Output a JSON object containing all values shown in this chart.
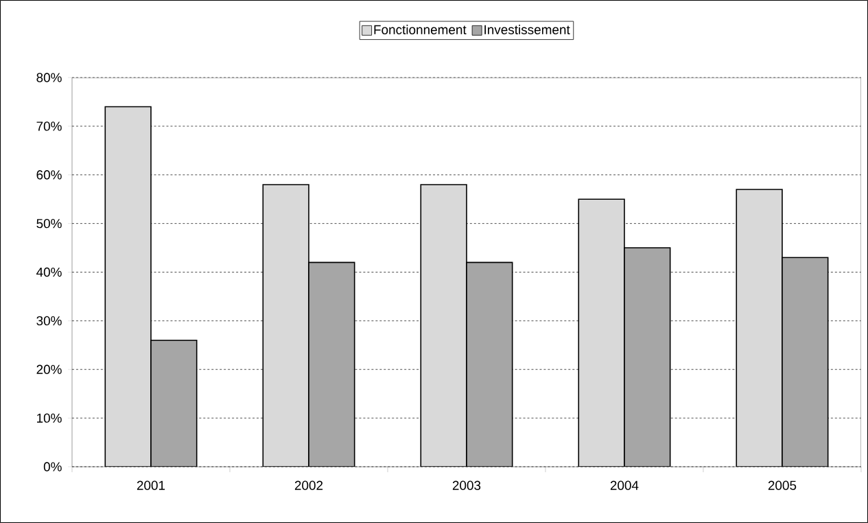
{
  "chart_data": {
    "type": "bar",
    "categories": [
      "2001",
      "2002",
      "2003",
      "2004",
      "2005"
    ],
    "series": [
      {
        "name": "Fonctionnement",
        "color": "#d9d9d9",
        "values": [
          74,
          58,
          58,
          55,
          57
        ]
      },
      {
        "name": "Investissement",
        "color": "#a6a6a6",
        "values": [
          26,
          42,
          42,
          45,
          43
        ]
      }
    ],
    "ylim": [
      0,
      80
    ],
    "yticks": [
      {
        "value": 0,
        "label": "0%"
      },
      {
        "value": 10,
        "label": "10%"
      },
      {
        "value": 20,
        "label": "20%"
      },
      {
        "value": 30,
        "label": "30%"
      },
      {
        "value": 40,
        "label": "40%"
      },
      {
        "value": 50,
        "label": "50%"
      },
      {
        "value": 60,
        "label": "60%"
      },
      {
        "value": 70,
        "label": "70%"
      },
      {
        "value": 80,
        "label": "80%"
      }
    ],
    "grid": "y",
    "legend": "top"
  }
}
